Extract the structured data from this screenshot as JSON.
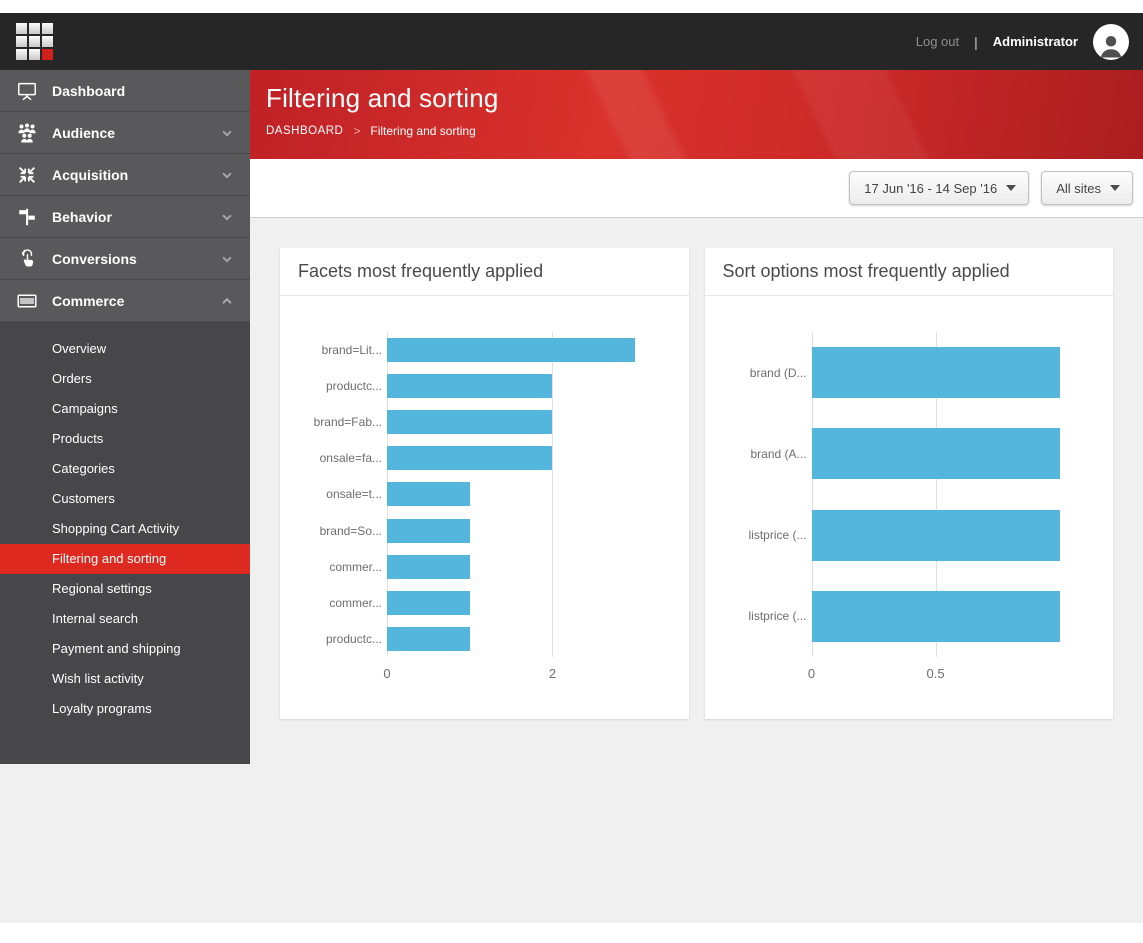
{
  "topbar": {
    "logout_label": "Log out",
    "separator": "|",
    "user_label": "Administrator"
  },
  "sidebar": {
    "items": [
      {
        "label": "Dashboard",
        "icon": "dashboard-icon",
        "chevron": null
      },
      {
        "label": "Audience",
        "icon": "audience-icon",
        "chevron": "down"
      },
      {
        "label": "Acquisition",
        "icon": "acquisition-icon",
        "chevron": "down"
      },
      {
        "label": "Behavior",
        "icon": "behavior-icon",
        "chevron": "down"
      },
      {
        "label": "Conversions",
        "icon": "conversions-icon",
        "chevron": "down"
      },
      {
        "label": "Commerce",
        "icon": "commerce-icon",
        "chevron": "up"
      }
    ],
    "commerce_submenu": [
      "Overview",
      "Orders",
      "Campaigns",
      "Products",
      "Categories",
      "Customers",
      "Shopping Cart Activity",
      "Filtering and sorting",
      "Regional settings",
      "Internal search",
      "Payment and shipping",
      "Wish list activity",
      "Loyalty programs"
    ],
    "selected_item": "Filtering and sorting"
  },
  "header": {
    "title": "Filtering and sorting",
    "breadcrumb_root": "DASHBOARD",
    "breadcrumb_separator": ">",
    "breadcrumb_current": "Filtering and sorting"
  },
  "toolbar": {
    "date_range": "17 Jun '16 - 14 Sep '16",
    "site_filter": "All sites"
  },
  "chart_data": [
    {
      "type": "bar",
      "orientation": "horizontal",
      "title": "Facets most frequently applied",
      "categories": [
        "brand=Lit...",
        "productc...",
        "brand=Fab...",
        "onsale=fa...",
        "onsale=t...",
        "brand=So...",
        "commer...",
        "commer...",
        "productc..."
      ],
      "values": [
        3,
        2,
        2,
        2,
        1,
        1,
        1,
        1,
        1
      ],
      "xticks": [
        0,
        2
      ],
      "xlim": [
        0,
        3.33
      ],
      "grid": "vertical-at-ticks",
      "legend": "none",
      "bar_color": "#54b6dd"
    },
    {
      "type": "bar",
      "orientation": "horizontal",
      "title": "Sort options most frequently applied",
      "categories": [
        "brand (D...",
        "brand (A...",
        "listprice (...",
        "listprice (..."
      ],
      "values": [
        1,
        1,
        1,
        1
      ],
      "xticks": [
        0,
        0.5
      ],
      "xlim": [
        0,
        1.11
      ],
      "grid": "vertical-at-ticks",
      "legend": "none",
      "bar_color": "#54b6dd"
    }
  ],
  "colors": {
    "bar_blue": "#54b6dd",
    "selected_red": "#dd291f",
    "header_red": "#c9252a",
    "topbar_black": "#262626",
    "sidebar_gray": "#59595b",
    "submenu_gray": "#47474a"
  }
}
